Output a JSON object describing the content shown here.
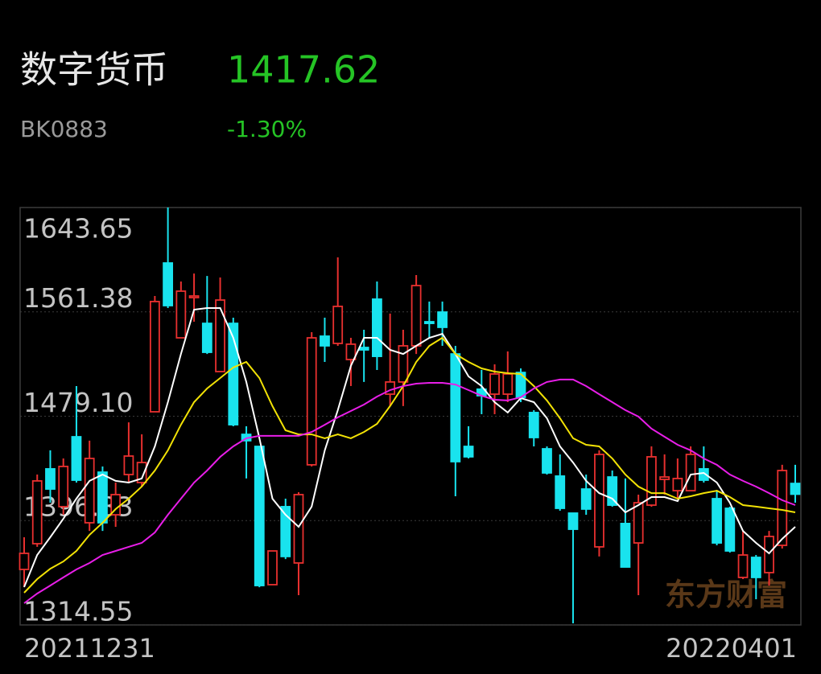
{
  "header": {
    "title": "数字货币",
    "price": "1417.62",
    "code": "BK0883",
    "change": "-1.30%"
  },
  "chart_data": {
    "type": "candlestick",
    "categories": [
      "20211231",
      null,
      null,
      null,
      null,
      null,
      null,
      null,
      null,
      null,
      null,
      null,
      null,
      null,
      null,
      null,
      null,
      null,
      null,
      null,
      null,
      null,
      null,
      null,
      null,
      null,
      null,
      null,
      null,
      null,
      null,
      null,
      null,
      null,
      null,
      null,
      null,
      null,
      null,
      null,
      null,
      null,
      null,
      null,
      null,
      null,
      null,
      null,
      null,
      null,
      null,
      null,
      null,
      null,
      null,
      null,
      null,
      null,
      null,
      "20220401"
    ],
    "open": [
      1358.3,
      1378.6,
      1437.6,
      1407.8,
      1462.9,
      1395.1,
      1435.0,
      1401.4,
      1433.1,
      1426.8,
      1482.6,
      1599.9,
      1540.9,
      1572.6,
      1552.3,
      1514.3,
      1552.3,
      1464.8,
      1455.3,
      1346.3,
      1407.8,
      1363.4,
      1440.8,
      1542.2,
      1536.5,
      1523.8,
      1533.3,
      1571.4,
      1496.5,
      1506.1,
      1534.6,
      1553.6,
      1561.2,
      1528.2,
      1455.3,
      1500.4,
      1496.5,
      1496.5,
      1513.6,
      1482.0,
      1453.4,
      1431.9,
      1402.7,
      1421.7,
      1376.1,
      1431.2,
      1394.5,
      1379.2,
      1409.0,
      1429.3,
      1420.4,
      1420.4,
      1437.6,
      1414.1,
      1406.5,
      1352.0,
      1367.8,
      1355.8,
      1377.3,
      1426.1
    ],
    "high": [
      1383.7,
      1433.1,
      1452.2,
      1445.8,
      1502.9,
      1459.8,
      1439.5,
      1426.8,
      1474.3,
      1464.8,
      1573.9,
      1643.65,
      1585.3,
      1591.6,
      1589.7,
      1588.5,
      1556.8,
      1471.2,
      1455.3,
      1372.9,
      1414.1,
      1419.2,
      1545.4,
      1556.8,
      1604.3,
      1540.9,
      1547.3,
      1585.3,
      1560.0,
      1547.3,
      1590.4,
      1569.5,
      1569.5,
      1534.6,
      1471.2,
      1515.6,
      1520.0,
      1530.2,
      1516.8,
      1483.9,
      1455.3,
      1449.0,
      1402.7,
      1433.1,
      1452.2,
      1436.3,
      1430.0,
      1417.3,
      1455.3,
      1449.0,
      1445.8,
      1455.3,
      1455.3,
      1420.4,
      1407.8,
      1388.7,
      1369.7,
      1388.7,
      1440.8,
      1440.8
    ],
    "low": [
      1344.3,
      1376.1,
      1410.9,
      1401.4,
      1426.8,
      1388.7,
      1388.7,
      1391.9,
      1426.8,
      1423.6,
      1482.6,
      1564.4,
      1540.9,
      1553.6,
      1528.2,
      1514.3,
      1471.2,
      1430.0,
      1344.3,
      1346.3,
      1366.5,
      1338.0,
      1439.5,
      1521.9,
      1534.6,
      1502.9,
      1506.1,
      1515.6,
      1487.1,
      1487.1,
      1528.2,
      1540.9,
      1534.6,
      1416.0,
      1445.8,
      1480.7,
      1480.7,
      1490.2,
      1490.2,
      1455.3,
      1433.1,
      1404.6,
      1315.8,
      1401.4,
      1368.5,
      1407.8,
      1360.2,
      1338.0,
      1407.8,
      1417.3,
      1414.1,
      1420.4,
      1426.8,
      1377.3,
      1371.6,
      1350.7,
      1334.8,
      1345.6,
      1374.8,
      1410.9
    ],
    "close": [
      1371.0,
      1428.1,
      1421.7,
      1439.5,
      1428.7,
      1445.8,
      1395.1,
      1417.3,
      1447.7,
      1442.6,
      1569.5,
      1566.3,
      1577.7,
      1573.9,
      1529.5,
      1570.7,
      1472.4,
      1459.8,
      1345.6,
      1372.9,
      1368.5,
      1417.3,
      1540.9,
      1534.6,
      1565.7,
      1535.9,
      1531.4,
      1526.3,
      1506.1,
      1534.6,
      1582.1,
      1552.3,
      1549.2,
      1443.3,
      1447.1,
      1495.3,
      1512.4,
      1512.4,
      1494.0,
      1462.3,
      1434.4,
      1406.5,
      1390.0,
      1405.9,
      1449.0,
      1409.0,
      1360.2,
      1410.9,
      1447.1,
      1431.2,
      1430.0,
      1449.0,
      1428.7,
      1379.2,
      1372.9,
      1369.7,
      1352.0,
      1384.3,
      1436.3,
      1417.62
    ],
    "up_color": "#e8302f",
    "down_color": "#19e3ee",
    "lines": [
      {
        "color": "#ffffff",
        "values": [
          1344.4,
          1369.7,
          1383.7,
          1398.3,
          1414.1,
          1428.1,
          1433.1,
          1428.1,
          1426.8,
          1430.0,
          1455.3,
          1490.2,
          1528.2,
          1563.1,
          1564.4,
          1564.4,
          1540.9,
          1506.1,
          1461.7,
          1414.1,
          1401.4,
          1391.9,
          1407.8,
          1452.2,
          1483.9,
          1518.7,
          1540.9,
          1540.9,
          1531.4,
          1528.2,
          1534.6,
          1540.9,
          1544.1,
          1528.2,
          1510.5,
          1502.9,
          1490.2,
          1482.0,
          1493.4,
          1490.2,
          1477.5,
          1455.3,
          1442.6,
          1428.1,
          1418.5,
          1414.1,
          1403.3,
          1409.0,
          1415.4,
          1415.4,
          1412.2,
          1433.1,
          1434.4,
          1426.8,
          1410.9,
          1388.7,
          1379.2,
          1371.0,
          1382.4,
          1391.9
        ]
      },
      {
        "color": "#f2e205",
        "values": [
          1339.9,
          1350.7,
          1358.9,
          1364.6,
          1372.9,
          1385.6,
          1395.1,
          1405.9,
          1414.1,
          1423.6,
          1436.3,
          1452.2,
          1472.4,
          1490.2,
          1501.0,
          1509.2,
          1517.5,
          1521.9,
          1509.2,
          1487.1,
          1468.0,
          1464.8,
          1464.8,
          1461.7,
          1464.8,
          1461.7,
          1466.7,
          1473.1,
          1487.1,
          1502.9,
          1521.9,
          1534.6,
          1540.9,
          1528.2,
          1521.9,
          1516.8,
          1514.3,
          1513.0,
          1512.4,
          1502.9,
          1491.5,
          1477.5,
          1461.7,
          1456.6,
          1455.3,
          1445.8,
          1433.1,
          1423.6,
          1418.5,
          1418.5,
          1414.1,
          1416.0,
          1418.5,
          1420.4,
          1415.4,
          1409.0,
          1407.8,
          1406.5,
          1405.2,
          1403.3
        ]
      },
      {
        "color": "#e81ee8",
        "values": [
          1331.7,
          1339.3,
          1345.6,
          1352.0,
          1358.3,
          1363.4,
          1369.7,
          1372.9,
          1376.1,
          1379.2,
          1387.5,
          1401.4,
          1414.1,
          1426.8,
          1436.3,
          1447.1,
          1455.3,
          1461.7,
          1463.6,
          1463.6,
          1463.6,
          1463.6,
          1466.7,
          1472.4,
          1478.2,
          1483.2,
          1488.3,
          1494.6,
          1499.7,
          1502.9,
          1504.8,
          1505.4,
          1505.4,
          1504.1,
          1499.7,
          1495.3,
          1492.1,
          1491.5,
          1494.0,
          1501.0,
          1506.1,
          1508.0,
          1508.0,
          1502.9,
          1496.5,
          1490.2,
          1483.9,
          1478.8,
          1469.3,
          1462.9,
          1456.6,
          1452.2,
          1445.8,
          1440.8,
          1433.1,
          1428.1,
          1423.6,
          1418.5,
          1412.9,
          1409.0
        ]
      }
    ],
    "ylim": [
      1314.55,
      1643.65
    ],
    "yticks": [
      1643.65,
      1561.38,
      {
        "value": 1479.1,
        "label": "1479.10"
      },
      1396.83,
      1314.55
    ],
    "grid": true,
    "watermark": "东方财富"
  }
}
